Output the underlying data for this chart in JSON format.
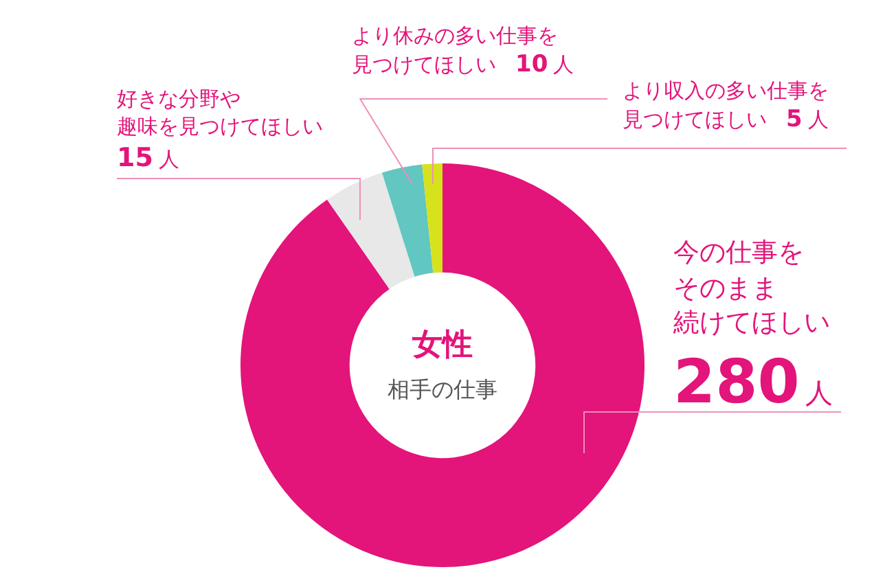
{
  "chart_data": {
    "type": "donut",
    "title": "女性",
    "subtitle": "相手の仕事",
    "categories": [
      "今の仕事をそのまま続けてほしい",
      "好きな分野や趣味を見つけてほしい",
      "より休みの多い仕事を見つけてほしい",
      "より収入の多い仕事を見つけてほしい"
    ],
    "values": [
      280,
      15,
      10,
      5
    ],
    "colors": [
      "#e3147a",
      "#e8e8e8",
      "#62c6c1",
      "#d6e21c"
    ],
    "value_labels": [
      "280人",
      "15人",
      "10人",
      "5人"
    ]
  }
}
